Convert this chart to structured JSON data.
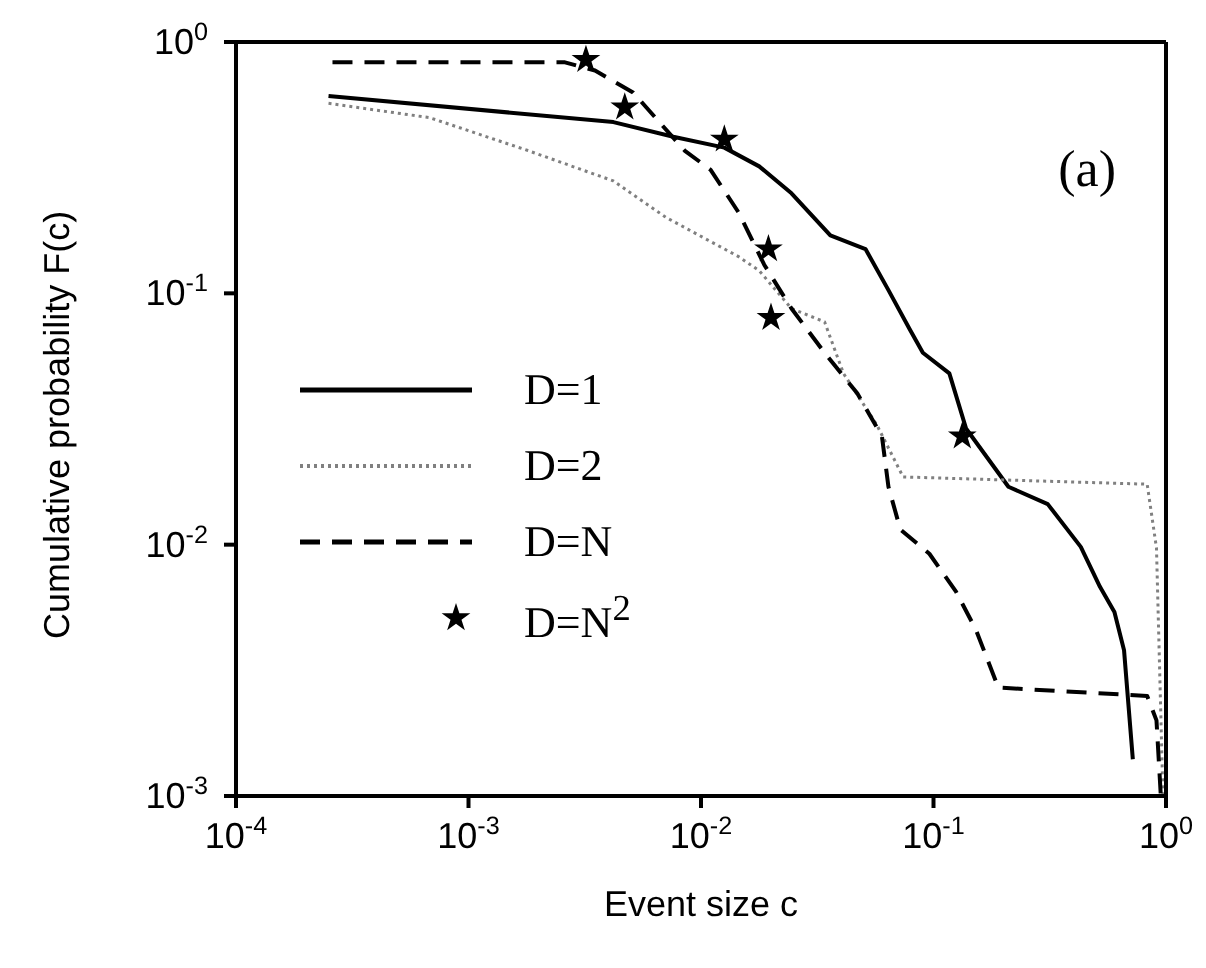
{
  "chart_data": {
    "type": "line",
    "xlabel": "Event size c",
    "ylabel": "Cumulative probability F(c)",
    "annotations": [
      "(a)"
    ],
    "log": "xy",
    "grid": false,
    "legend": "bottom left",
    "xlim": [
      0.0001,
      1
    ],
    "ylim": [
      0.001,
      1
    ],
    "xticks": [
      {
        "value": 0.0001,
        "label": "10$^{-4}$"
      },
      {
        "value": 0.001,
        "label": "10$^{-3}$"
      },
      {
        "value": 0.01,
        "label": "10$^{-2}$"
      },
      {
        "value": 0.1,
        "label": "10$^{-1}$"
      },
      {
        "value": 1,
        "label": "10$^{0}$"
      }
    ],
    "yticks": [
      {
        "value": 0.001,
        "label": "10$^{-3}$"
      },
      {
        "value": 0.01,
        "label": "10$^{-2}$"
      },
      {
        "value": 0.1,
        "label": "10$^{-1}$"
      },
      {
        "value": 1,
        "label": "10$^{0}$"
      }
    ],
    "series": [
      {
        "name": "D=1",
        "color": "#000000",
        "line_style": "solid",
        "x": [
          0.00025,
          0.0042,
          0.0076,
          0.0126,
          0.0178,
          0.0245,
          0.036,
          0.051,
          0.064,
          0.079,
          0.09,
          0.117,
          0.138,
          0.21,
          0.31,
          0.43,
          0.52,
          0.6,
          0.66,
          0.72
        ],
        "values": [
          0.61,
          0.48,
          0.42,
          0.38,
          0.32,
          0.25,
          0.17,
          0.15,
          0.103,
          0.072,
          0.058,
          0.048,
          0.029,
          0.017,
          0.0145,
          0.0098,
          0.0068,
          0.0054,
          0.0038,
          0.0014
        ]
      },
      {
        "name": "D=2",
        "color": "#808080",
        "line_style": "dotted",
        "x": [
          0.00025,
          0.00068,
          0.0018,
          0.0042,
          0.0071,
          0.0145,
          0.0178,
          0.0245,
          0.034,
          0.041,
          0.057,
          0.074,
          0.83,
          0.91,
          0.97
        ],
        "values": [
          0.57,
          0.5,
          0.37,
          0.28,
          0.2,
          0.14,
          0.123,
          0.087,
          0.077,
          0.048,
          0.03,
          0.0186,
          0.0174,
          0.0097,
          0.001
        ]
      },
      {
        "name": "D=N",
        "color": "#000000",
        "line_style": "dashed",
        "x": [
          0.00026,
          0.0026,
          0.0035,
          0.0051,
          0.0085,
          0.011,
          0.0145,
          0.0187,
          0.0245,
          0.034,
          0.047,
          0.06,
          0.064,
          0.072,
          0.096,
          0.125,
          0.152,
          0.19,
          0.83,
          0.91,
          0.95
        ],
        "values": [
          0.83,
          0.83,
          0.77,
          0.63,
          0.37,
          0.31,
          0.21,
          0.13,
          0.087,
          0.058,
          0.04,
          0.027,
          0.017,
          0.0115,
          0.0092,
          0.0065,
          0.0046,
          0.0027,
          0.0025,
          0.002,
          0.001
        ]
      },
      {
        "name": "D=N$^{2}$",
        "type": "scatter",
        "marker": "star",
        "color": "#000000",
        "x": [
          0.0032,
          0.0047,
          0.0126,
          0.0195,
          0.02,
          0.133
        ],
        "values": [
          0.85,
          0.55,
          0.41,
          0.15,
          0.08,
          0.027
        ]
      }
    ]
  }
}
